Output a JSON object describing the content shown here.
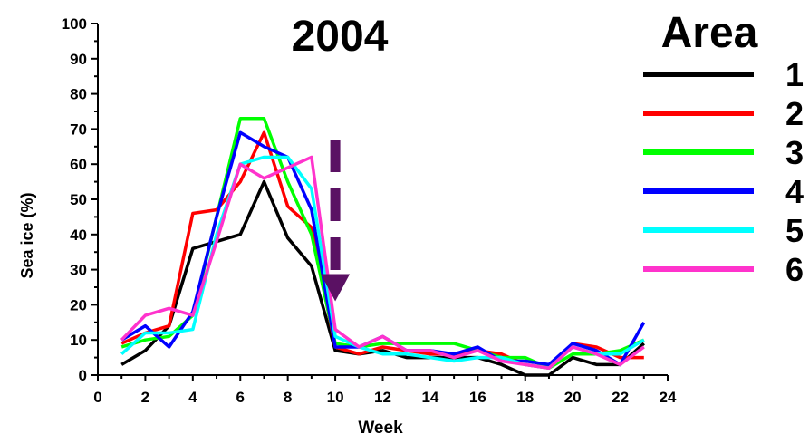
{
  "chart_data": {
    "type": "line",
    "title": "2004",
    "xlabel": "Week",
    "ylabel": "Sea ice (%)",
    "xlim": [
      0,
      24
    ],
    "ylim": [
      0,
      100
    ],
    "x_ticks": [
      "0",
      "2",
      "4",
      "6",
      "8",
      "10",
      "12",
      "14",
      "16",
      "18",
      "20",
      "22",
      "24"
    ],
    "y_ticks": [
      "0",
      "10",
      "20",
      "30",
      "40",
      "50",
      "60",
      "70",
      "80",
      "90",
      "100"
    ],
    "grid": false,
    "legend_title": "Area",
    "legend_position": "right",
    "x": [
      1,
      2,
      3,
      4,
      5,
      6,
      7,
      8,
      9,
      10,
      11,
      12,
      13,
      14,
      15,
      16,
      17,
      18,
      19,
      20,
      21,
      22,
      23
    ],
    "series": [
      {
        "name": "1",
        "color": "#000000",
        "values": [
          3,
          7,
          14,
          36,
          38,
          40,
          55,
          39,
          31,
          7,
          6,
          7,
          5,
          5,
          5,
          5,
          3,
          0,
          0,
          5,
          3,
          3,
          9
        ]
      },
      {
        "name": "2",
        "color": "#ff0000",
        "values": [
          9,
          12,
          14,
          46,
          47,
          55,
          69,
          48,
          42,
          8,
          6,
          8,
          7,
          6,
          6,
          7,
          6,
          3,
          2,
          9,
          8,
          5,
          5
        ]
      },
      {
        "name": "3",
        "color": "#00ff00",
        "values": [
          8,
          10,
          11,
          17,
          45,
          73,
          73,
          55,
          40,
          9,
          8,
          9,
          9,
          9,
          9,
          7,
          5,
          5,
          2,
          6,
          6,
          7,
          10
        ]
      },
      {
        "name": "4",
        "color": "#0000ff",
        "values": [
          10,
          14,
          8,
          18,
          45,
          69,
          65,
          62,
          47,
          8,
          8,
          11,
          7,
          7,
          6,
          8,
          4,
          4,
          3,
          9,
          7,
          3,
          15
        ]
      },
      {
        "name": "5",
        "color": "#00ffff",
        "values": [
          6,
          12,
          12,
          13,
          40,
          60,
          62,
          62,
          53,
          11,
          8,
          6,
          6,
          5,
          4,
          5,
          5,
          3,
          2,
          8,
          6,
          6,
          10
        ]
      },
      {
        "name": "6",
        "color": "#ff33cc",
        "values": [
          10,
          17,
          19,
          17,
          38,
          60,
          56,
          59,
          62,
          13,
          8,
          11,
          7,
          7,
          5,
          7,
          4,
          3,
          2,
          8,
          6,
          3,
          8
        ]
      }
    ],
    "annotations": [
      {
        "type": "dashed-arrow",
        "x": 10,
        "y_from": 67,
        "y_to": 21,
        "color": "#5a1163"
      }
    ]
  }
}
